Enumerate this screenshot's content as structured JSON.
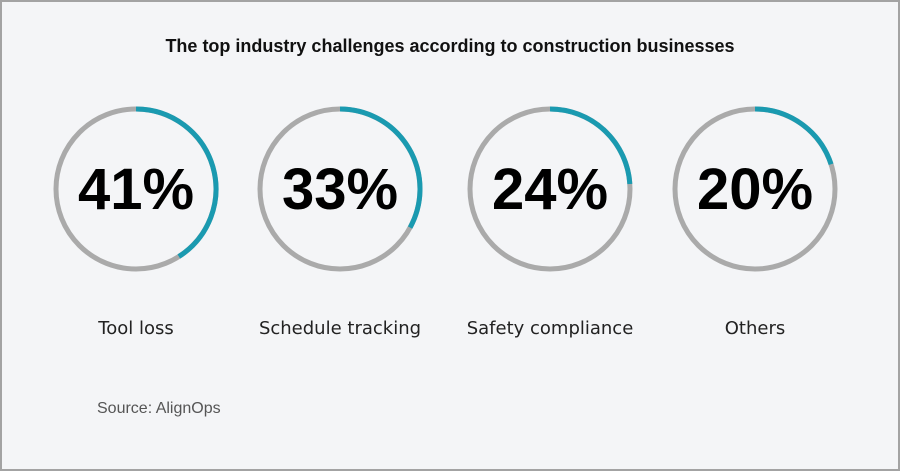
{
  "chart_data": {
    "type": "donut-progress",
    "title": "The top industry challenges according to construction businesses",
    "categories": [
      "Tool loss",
      "Schedule tracking",
      "Safety compliance",
      "Others"
    ],
    "values": [
      41,
      33,
      24,
      20
    ],
    "value_labels": [
      "41%",
      "33%",
      "24%",
      "20%"
    ],
    "unit": "%",
    "source": "Source: AlignOps",
    "colors": {
      "fill": "#1a9ab0",
      "track": "#aaaaaa",
      "text": "#000000"
    }
  }
}
